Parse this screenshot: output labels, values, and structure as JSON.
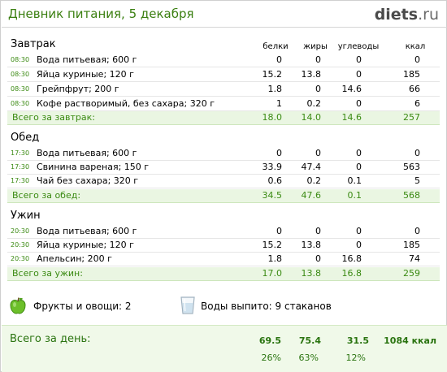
{
  "header": {
    "title": "Дневник питания, 5 декабря",
    "logo_main": "diets",
    "logo_suffix": ".ru"
  },
  "columns": {
    "protein": "белки",
    "fat": "жиры",
    "carbs": "углеводы",
    "kcal": "ккал"
  },
  "meals": [
    {
      "name": "Завтрак",
      "items": [
        {
          "time": "08:30",
          "name": "Вода питьевая; 600 г",
          "protein": "0",
          "fat": "0",
          "carbs": "0",
          "kcal": "0"
        },
        {
          "time": "08:30",
          "name": "Яйца куриные; 120 г",
          "protein": "15.2",
          "fat": "13.8",
          "carbs": "0",
          "kcal": "185"
        },
        {
          "time": "08:30",
          "name": "Грейпфрут; 200 г",
          "protein": "1.8",
          "fat": "0",
          "carbs": "14.6",
          "kcal": "66"
        },
        {
          "time": "08:30",
          "name": "Кофе растворимый, без сахара; 320 г",
          "protein": "1",
          "fat": "0.2",
          "carbs": "0",
          "kcal": "6"
        }
      ],
      "total": {
        "label": "Всего за завтрак:",
        "protein": "18.0",
        "fat": "14.0",
        "carbs": "14.6",
        "kcal": "257"
      }
    },
    {
      "name": "Обед",
      "items": [
        {
          "time": "17:30",
          "name": "Вода питьевая; 600 г",
          "protein": "0",
          "fat": "0",
          "carbs": "0",
          "kcal": "0"
        },
        {
          "time": "17:30",
          "name": "Свинина вареная; 150 г",
          "protein": "33.9",
          "fat": "47.4",
          "carbs": "0",
          "kcal": "563"
        },
        {
          "time": "17:30",
          "name": "Чай без сахара; 320 г",
          "protein": "0.6",
          "fat": "0.2",
          "carbs": "0.1",
          "kcal": "5"
        }
      ],
      "total": {
        "label": "Всего за обед:",
        "protein": "34.5",
        "fat": "47.6",
        "carbs": "0.1",
        "kcal": "568"
      }
    },
    {
      "name": "Ужин",
      "items": [
        {
          "time": "20:30",
          "name": "Вода питьевая; 600 г",
          "protein": "0",
          "fat": "0",
          "carbs": "0",
          "kcal": "0"
        },
        {
          "time": "20:30",
          "name": "Яйца куриные; 120 г",
          "protein": "15.2",
          "fat": "13.8",
          "carbs": "0",
          "kcal": "185"
        },
        {
          "time": "20:30",
          "name": "Апельсин; 200 г",
          "protein": "1.8",
          "fat": "0",
          "carbs": "16.8",
          "kcal": "74"
        }
      ],
      "total": {
        "label": "Всего за ужин:",
        "protein": "17.0",
        "fat": "13.8",
        "carbs": "16.8",
        "kcal": "259"
      }
    }
  ],
  "extras": {
    "fruits_label": "Фрукты и овощи: 2",
    "water_label": "Воды выпито: 9 стаканов",
    "apple_icon": "green-apple-icon",
    "glass_icon": "water-glass-icon"
  },
  "day_total": {
    "label": "Всего за день:",
    "protein": "69.5",
    "fat": "75.4",
    "carbs": "31.5",
    "kcal": "1084 ккал",
    "protein_pct": "26%",
    "fat_pct": "63%",
    "carbs_pct": "12%"
  },
  "colors": {
    "accent_green": "#3a8a12",
    "total_bg": "#eaf6e2",
    "day_bg": "#f0f9e9"
  }
}
